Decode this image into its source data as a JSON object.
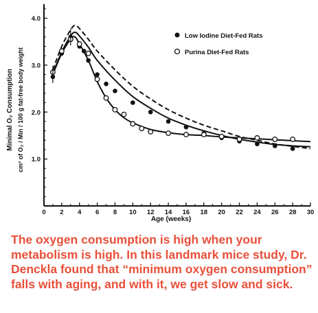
{
  "chart_data": {
    "type": "line",
    "title": "",
    "xlabel": "Age (weeks)",
    "ylabel_line1": "Minimal O₂ Consumption",
    "ylabel_line2": "cm³ of O₂ / Min / 100 g fat-free body weight",
    "xlim": [
      0,
      30
    ],
    "ylim": [
      0,
      4.3
    ],
    "xticks": [
      0,
      2,
      4,
      6,
      8,
      10,
      12,
      14,
      16,
      18,
      20,
      22,
      24,
      26,
      28,
      30
    ],
    "yticks": [
      1.0,
      2.0,
      3.0,
      4.0
    ],
    "legend_position": "top-right",
    "series": [
      {
        "name": "Low Iodine Diet-Fed Rats",
        "marker": "filled-circle",
        "points": [
          [
            1,
            2.75
          ],
          [
            2,
            3.25
          ],
          [
            3,
            3.6
          ],
          [
            4,
            3.4
          ],
          [
            4.5,
            3.3
          ],
          [
            5,
            3.1
          ],
          [
            6,
            2.8
          ],
          [
            7,
            2.6
          ],
          [
            8,
            2.45
          ],
          [
            10,
            2.2
          ],
          [
            12,
            2.0
          ],
          [
            14,
            1.8
          ],
          [
            16,
            1.68
          ],
          [
            18,
            1.55
          ],
          [
            20,
            1.45
          ],
          [
            22,
            1.38
          ],
          [
            24,
            1.32
          ],
          [
            26,
            1.28
          ],
          [
            28,
            1.22
          ]
        ]
      },
      {
        "name": "Purina Diet-Fed Rats",
        "marker": "open-circle",
        "points": [
          [
            1,
            2.85
          ],
          [
            2,
            3.3
          ],
          [
            3,
            3.55
          ],
          [
            4,
            3.45
          ],
          [
            5,
            3.25
          ],
          [
            6,
            2.7
          ],
          [
            7,
            2.3
          ],
          [
            8,
            2.05
          ],
          [
            9,
            1.95
          ],
          [
            10,
            1.75
          ],
          [
            11,
            1.65
          ],
          [
            12,
            1.58
          ],
          [
            14,
            1.55
          ],
          [
            16,
            1.52
          ],
          [
            18,
            1.52
          ],
          [
            20,
            1.48
          ],
          [
            22,
            1.42
          ],
          [
            24,
            1.45
          ],
          [
            26,
            1.42
          ],
          [
            28,
            1.42
          ]
        ]
      }
    ],
    "curves": [
      {
        "style": "dashed",
        "points": [
          [
            1,
            2.9
          ],
          [
            2,
            3.4
          ],
          [
            3,
            3.75
          ],
          [
            3.5,
            3.85
          ],
          [
            4,
            3.78
          ],
          [
            5,
            3.55
          ],
          [
            6,
            3.3
          ],
          [
            8,
            2.9
          ],
          [
            10,
            2.55
          ],
          [
            12,
            2.28
          ],
          [
            14,
            2.05
          ],
          [
            16,
            1.87
          ],
          [
            18,
            1.72
          ],
          [
            20,
            1.6
          ],
          [
            22,
            1.48
          ],
          [
            24,
            1.4
          ],
          [
            26,
            1.32
          ],
          [
            28,
            1.27
          ],
          [
            30,
            1.22
          ]
        ]
      },
      {
        "style": "solid",
        "points": [
          [
            1,
            2.82
          ],
          [
            2,
            3.28
          ],
          [
            3,
            3.62
          ],
          [
            3.5,
            3.7
          ],
          [
            4,
            3.62
          ],
          [
            5,
            3.38
          ],
          [
            6,
            3.1
          ],
          [
            8,
            2.68
          ],
          [
            10,
            2.33
          ],
          [
            12,
            2.08
          ],
          [
            14,
            1.87
          ],
          [
            16,
            1.72
          ],
          [
            18,
            1.6
          ],
          [
            20,
            1.5
          ],
          [
            22,
            1.42
          ],
          [
            24,
            1.36
          ],
          [
            26,
            1.31
          ],
          [
            28,
            1.28
          ],
          [
            30,
            1.26
          ]
        ]
      },
      {
        "style": "solid",
        "points": [
          [
            1,
            2.8
          ],
          [
            2,
            3.25
          ],
          [
            3,
            3.55
          ],
          [
            3.5,
            3.6
          ],
          [
            4,
            3.45
          ],
          [
            5,
            3.1
          ],
          [
            6,
            2.65
          ],
          [
            7,
            2.3
          ],
          [
            8,
            2.05
          ],
          [
            9,
            1.88
          ],
          [
            10,
            1.77
          ],
          [
            12,
            1.63
          ],
          [
            14,
            1.56
          ],
          [
            16,
            1.52
          ],
          [
            18,
            1.5
          ],
          [
            20,
            1.47
          ],
          [
            22,
            1.45
          ],
          [
            24,
            1.43
          ],
          [
            26,
            1.41
          ],
          [
            28,
            1.39
          ],
          [
            30,
            1.37
          ]
        ]
      }
    ]
  },
  "caption": "The oxygen consumption is high when your metabolism is high. In this landmark mice study, Dr. Denckla found that “minimum oxygen consumption” falls with aging, and with it, we get slow and sick."
}
